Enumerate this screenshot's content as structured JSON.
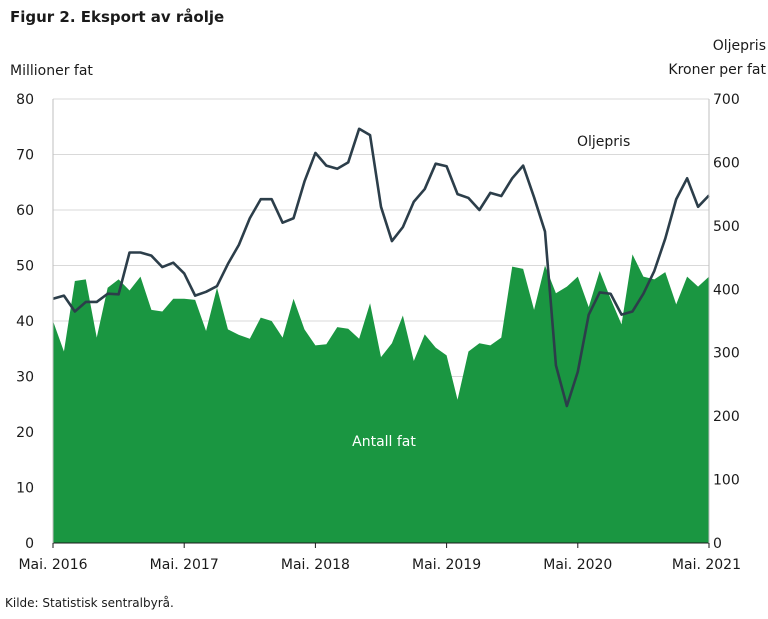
{
  "title": "Figur 2. Eksport av råolje",
  "source": "Kilde: Statistisk sentralbyrå.",
  "chart_data": {
    "type": "area",
    "left_axis_label": "Millioner fat",
    "right_axis_label_line1": "Oljepris",
    "right_axis_label_line2": "Kroner per fat",
    "left_ylim": [
      0,
      80
    ],
    "left_ticks": [
      0,
      10,
      20,
      30,
      40,
      50,
      60,
      70,
      80
    ],
    "right_ylim": [
      0,
      700
    ],
    "right_ticks": [
      0,
      100,
      200,
      300,
      400,
      500,
      600,
      700
    ],
    "x_tick_labels": [
      "Mai. 2016",
      "Mai. 2017",
      "Mai. 2018",
      "Mai. 2019",
      "Mai. 2020",
      "Mai. 2021"
    ],
    "x_tick_index": [
      0,
      12,
      24,
      36,
      48,
      60
    ],
    "grid": true,
    "colors": {
      "area": "#1a9641",
      "line": "#2c3e4a",
      "grid": "#d9d9d9"
    },
    "series": [
      {
        "name": "Antall fat",
        "axis": "left",
        "values": [
          40.0,
          34.5,
          47.2,
          47.5,
          37.0,
          46.0,
          47.5,
          45.5,
          48.0,
          42.0,
          41.7,
          44.0,
          44.0,
          43.8,
          38.2,
          46.0,
          38.5,
          37.5,
          36.8,
          40.6,
          40.0,
          37.0,
          44.0,
          38.5,
          35.6,
          35.8,
          38.9,
          38.6,
          36.8,
          43.2,
          33.5,
          36.0,
          41.0,
          32.8,
          37.6,
          35.2,
          33.8,
          25.8,
          34.5,
          36.0,
          35.6,
          37.0,
          49.8,
          49.4,
          42.0,
          50.0,
          45.0,
          46.2,
          48.0,
          42.5,
          49.0,
          44.0,
          39.4,
          52.0,
          48.0,
          47.5,
          48.8,
          43.0,
          48.0,
          46.2,
          48.0
        ]
      },
      {
        "name": "Oljepris",
        "axis": "right",
        "values": [
          385,
          390,
          365,
          380,
          380,
          393,
          392,
          458,
          458,
          453,
          435,
          442,
          425,
          390,
          396,
          405,
          440,
          470,
          512,
          542,
          542,
          505,
          512,
          570,
          615,
          595,
          590,
          600,
          653,
          643,
          530,
          476,
          498,
          538,
          558,
          598,
          594,
          550,
          544,
          525,
          552,
          547,
          575,
          595,
          545,
          491,
          280,
          216,
          270,
          360,
          395,
          393,
          360,
          365,
          393,
          429,
          480,
          542,
          575,
          530,
          548
        ]
      }
    ]
  }
}
